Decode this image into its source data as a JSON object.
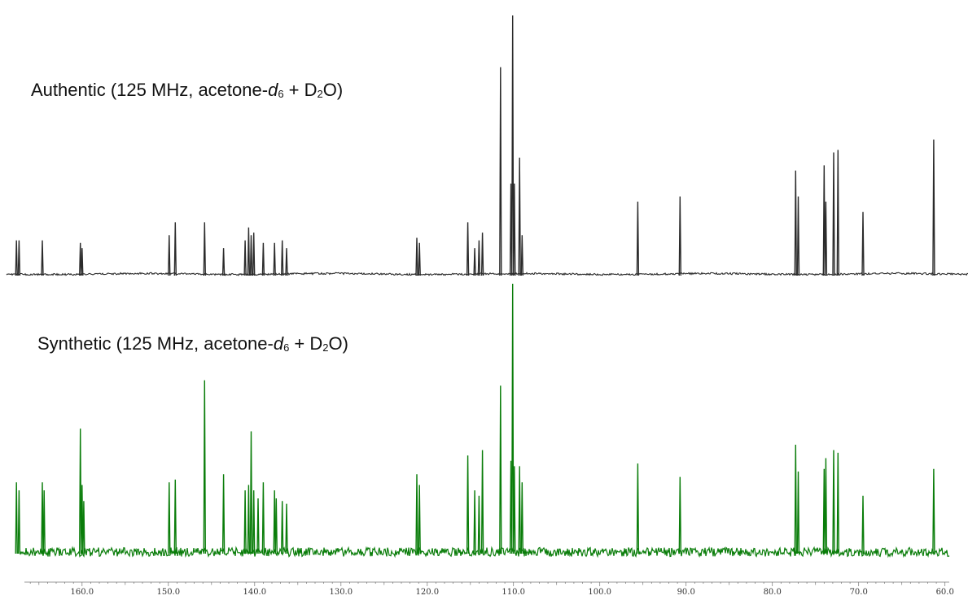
{
  "labels": {
    "top": {
      "name": "Authentic",
      "spec": "(125 MHz, acetone-",
      "solvent_d": "d",
      "solvent_sub": "6",
      "mid": " + D",
      "d2o_sub": "2",
      "end": "O)"
    },
    "bottom": {
      "name": "Synthetic",
      "spec": "(125 MHz, acetone-",
      "solvent_d": "d",
      "solvent_sub": "6",
      "mid": " + D",
      "d2o_sub": "2",
      "end": "O)"
    }
  },
  "chart_data": {
    "type": "line",
    "xlim": [
      168.0,
      59.5
    ],
    "x_direction": "reversed",
    "x_ticks": [
      160.0,
      150.0,
      140.0,
      130.0,
      120.0,
      110.0,
      100.0,
      90.0,
      80.0,
      70.0,
      60.0
    ],
    "x_tick_labels": [
      "160.0",
      "150.0",
      "140.0",
      "130.0",
      "120.0",
      "110.0",
      "100.0",
      "90.0",
      "80.0",
      "70.0",
      "60.0"
    ],
    "grid": false,
    "series": [
      {
        "name": "Authentic",
        "color": "#2b2b2b",
        "noise": "low",
        "peaks": [
          {
            "x": 167.6,
            "h": 0.13
          },
          {
            "x": 167.3,
            "h": 0.13
          },
          {
            "x": 164.6,
            "h": 0.13
          },
          {
            "x": 160.2,
            "h": 0.12
          },
          {
            "x": 160.0,
            "h": 0.1
          },
          {
            "x": 149.9,
            "h": 0.15
          },
          {
            "x": 149.2,
            "h": 0.2
          },
          {
            "x": 145.8,
            "h": 0.2
          },
          {
            "x": 143.6,
            "h": 0.1
          },
          {
            "x": 141.1,
            "h": 0.13
          },
          {
            "x": 140.7,
            "h": 0.18
          },
          {
            "x": 140.4,
            "h": 0.15
          },
          {
            "x": 140.1,
            "h": 0.16
          },
          {
            "x": 139.0,
            "h": 0.12
          },
          {
            "x": 137.7,
            "h": 0.12
          },
          {
            "x": 136.8,
            "h": 0.13
          },
          {
            "x": 136.3,
            "h": 0.1
          },
          {
            "x": 121.2,
            "h": 0.14
          },
          {
            "x": 120.9,
            "h": 0.12
          },
          {
            "x": 115.3,
            "h": 0.2
          },
          {
            "x": 114.5,
            "h": 0.1
          },
          {
            "x": 114.0,
            "h": 0.13
          },
          {
            "x": 113.6,
            "h": 0.16
          },
          {
            "x": 111.5,
            "h": 0.8
          },
          {
            "x": 110.3,
            "h": 0.35
          },
          {
            "x": 110.1,
            "h": 1.0
          },
          {
            "x": 109.9,
            "h": 0.35
          },
          {
            "x": 109.3,
            "h": 0.45
          },
          {
            "x": 109.0,
            "h": 0.15
          },
          {
            "x": 95.6,
            "h": 0.28
          },
          {
            "x": 90.7,
            "h": 0.3
          },
          {
            "x": 77.3,
            "h": 0.4
          },
          {
            "x": 77.0,
            "h": 0.3
          },
          {
            "x": 74.0,
            "h": 0.42
          },
          {
            "x": 73.8,
            "h": 0.28
          },
          {
            "x": 72.9,
            "h": 0.47
          },
          {
            "x": 72.4,
            "h": 0.48
          },
          {
            "x": 69.5,
            "h": 0.24
          },
          {
            "x": 61.3,
            "h": 0.52
          }
        ]
      },
      {
        "name": "Synthetic",
        "color": "#0a7d0a",
        "noise": "high",
        "peaks": [
          {
            "x": 167.6,
            "h": 0.26
          },
          {
            "x": 167.3,
            "h": 0.23
          },
          {
            "x": 164.6,
            "h": 0.26
          },
          {
            "x": 164.4,
            "h": 0.23
          },
          {
            "x": 160.2,
            "h": 0.46
          },
          {
            "x": 160.0,
            "h": 0.25
          },
          {
            "x": 159.8,
            "h": 0.19
          },
          {
            "x": 149.9,
            "h": 0.26
          },
          {
            "x": 149.2,
            "h": 0.27
          },
          {
            "x": 145.8,
            "h": 0.64
          },
          {
            "x": 143.6,
            "h": 0.29
          },
          {
            "x": 141.1,
            "h": 0.23
          },
          {
            "x": 140.7,
            "h": 0.25
          },
          {
            "x": 140.4,
            "h": 0.45
          },
          {
            "x": 140.1,
            "h": 0.23
          },
          {
            "x": 139.6,
            "h": 0.2
          },
          {
            "x": 139.0,
            "h": 0.26
          },
          {
            "x": 137.7,
            "h": 0.23
          },
          {
            "x": 137.5,
            "h": 0.2
          },
          {
            "x": 136.8,
            "h": 0.19
          },
          {
            "x": 136.3,
            "h": 0.18
          },
          {
            "x": 121.2,
            "h": 0.29
          },
          {
            "x": 120.9,
            "h": 0.25
          },
          {
            "x": 115.3,
            "h": 0.36
          },
          {
            "x": 114.5,
            "h": 0.23
          },
          {
            "x": 114.0,
            "h": 0.21
          },
          {
            "x": 113.6,
            "h": 0.38
          },
          {
            "x": 111.5,
            "h": 0.62
          },
          {
            "x": 110.3,
            "h": 0.34
          },
          {
            "x": 110.1,
            "h": 1.0
          },
          {
            "x": 109.9,
            "h": 0.32
          },
          {
            "x": 109.3,
            "h": 0.32
          },
          {
            "x": 109.0,
            "h": 0.26
          },
          {
            "x": 95.6,
            "h": 0.33
          },
          {
            "x": 90.7,
            "h": 0.28
          },
          {
            "x": 77.3,
            "h": 0.4
          },
          {
            "x": 77.0,
            "h": 0.3
          },
          {
            "x": 74.0,
            "h": 0.31
          },
          {
            "x": 73.8,
            "h": 0.35
          },
          {
            "x": 72.9,
            "h": 0.38
          },
          {
            "x": 72.4,
            "h": 0.37
          },
          {
            "x": 69.5,
            "h": 0.21
          },
          {
            "x": 61.3,
            "h": 0.31
          }
        ]
      }
    ]
  }
}
